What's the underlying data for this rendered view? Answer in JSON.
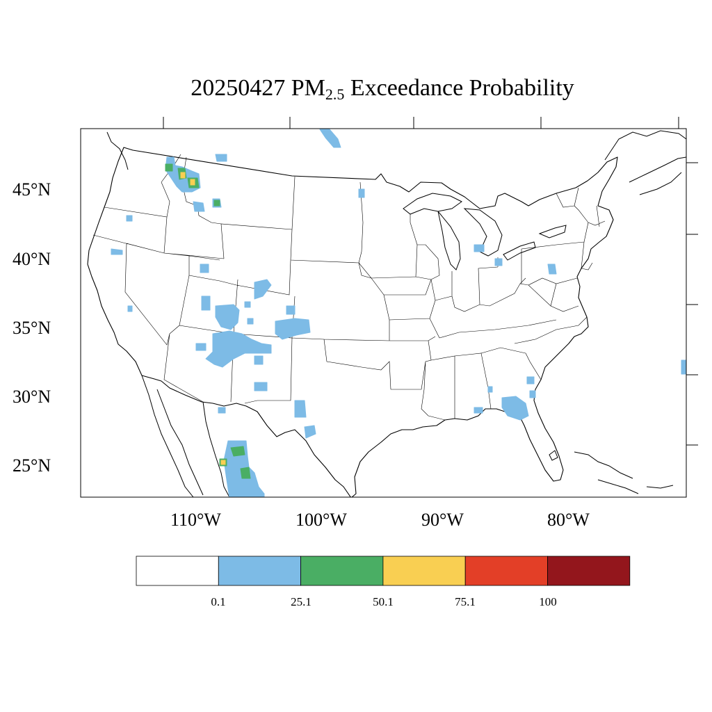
{
  "title": {
    "prefix": "20250427 PM",
    "subscript": "2.5",
    "suffix": " Exceedance Probability"
  },
  "axes": {
    "lat_labels": [
      "45°N",
      "40°N",
      "35°N",
      "30°N",
      "25°N"
    ],
    "lon_labels": [
      "110°W",
      "100°W",
      "90°W",
      "80°W"
    ]
  },
  "colorbar": {
    "labels": [
      "0.1",
      "25.1",
      "50.1",
      "75.1",
      "100"
    ],
    "bins": [
      {
        "color": "#ffffff"
      },
      {
        "color": "#7dbbe6"
      },
      {
        "color": "#4aae64"
      },
      {
        "color": "#f9cf52"
      },
      {
        "color": "#e33f27"
      },
      {
        "color": "#93161c"
      }
    ]
  }
}
